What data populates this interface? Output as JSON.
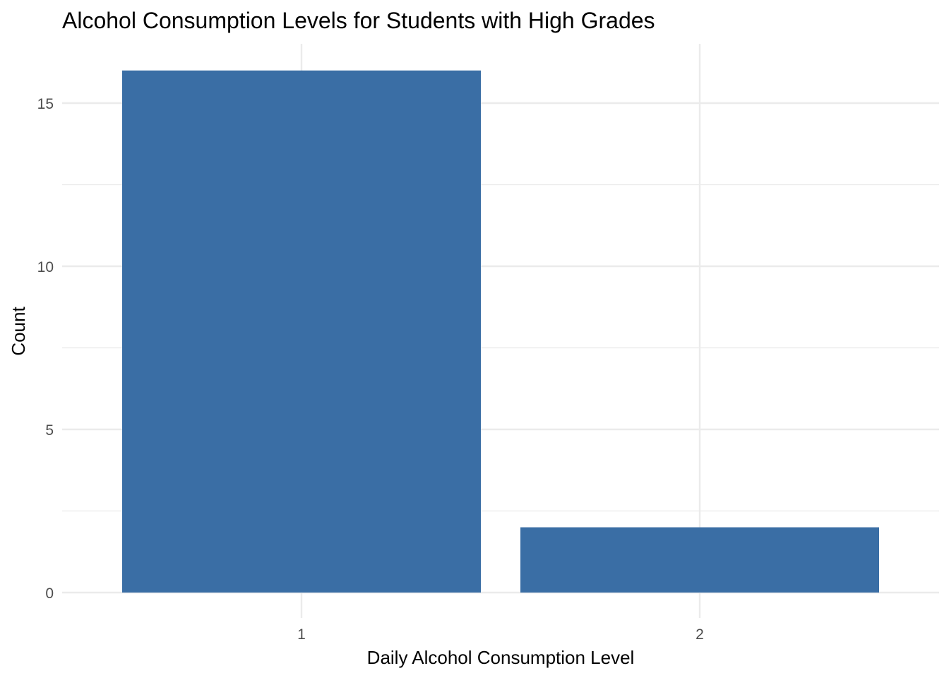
{
  "chart_data": {
    "type": "bar",
    "title": "Alcohol Consumption Levels for Students with High Grades",
    "xlabel": "Daily Alcohol Consumption Level",
    "ylabel": "Count",
    "categories": [
      "1",
      "2"
    ],
    "values": [
      16,
      2
    ],
    "ylim": [
      0,
      16.8
    ],
    "yticks": [
      0,
      5,
      10,
      15
    ],
    "grid": true,
    "bar_color": "#3A6EA5",
    "grid_color": "#EBEBEB",
    "background_color": "#FFFFFF"
  }
}
